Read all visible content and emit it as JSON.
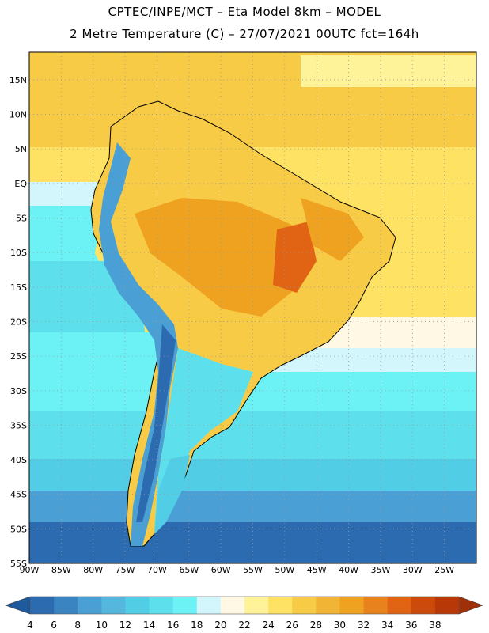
{
  "title": {
    "line1": "CPTEC/INPE/MCT –  Eta Model 8km – MODEL",
    "line2": "2 Metre Temperature (C) – 27/07/2021 00UTC fct=164h"
  },
  "map": {
    "lon_range": [
      -90,
      -20
    ],
    "lat_range": [
      -55,
      19
    ],
    "lat_ticks": [
      "15N",
      "10N",
      "5N",
      "EQ",
      "5S",
      "10S",
      "15S",
      "20S",
      "25S",
      "30S",
      "35S",
      "40S",
      "45S",
      "50S",
      "55S"
    ],
    "lat_values": [
      15,
      10,
      5,
      0,
      -5,
      -10,
      -15,
      -20,
      -25,
      -30,
      -35,
      -40,
      -45,
      -50,
      -55
    ],
    "lon_ticks": [
      "90W",
      "85W",
      "80W",
      "75W",
      "70W",
      "65W",
      "60W",
      "55W",
      "50W",
      "45W",
      "40W",
      "35W",
      "30W",
      "25W"
    ],
    "lon_values": [
      -90,
      -85,
      -80,
      -75,
      -70,
      -65,
      -60,
      -55,
      -50,
      -45,
      -40,
      -35,
      -30,
      -25
    ],
    "grid": "dotted"
  },
  "colorbar": {
    "labels": [
      "4",
      "6",
      "8",
      "10",
      "12",
      "14",
      "16",
      "18",
      "20",
      "22",
      "24",
      "26",
      "28",
      "30",
      "32",
      "34",
      "36",
      "38"
    ],
    "colors": [
      "#2d6bb0",
      "#3a84c2",
      "#4aa0d4",
      "#55b6de",
      "#52cde6",
      "#5ee0ec",
      "#6cf2f5",
      "#d2f6fb",
      "#fff8e4",
      "#fff39a",
      "#fde264",
      "#f8cb47",
      "#f2b434",
      "#eea21f",
      "#e8821c",
      "#e06414",
      "#cc4a0c",
      "#b83808"
    ]
  }
}
